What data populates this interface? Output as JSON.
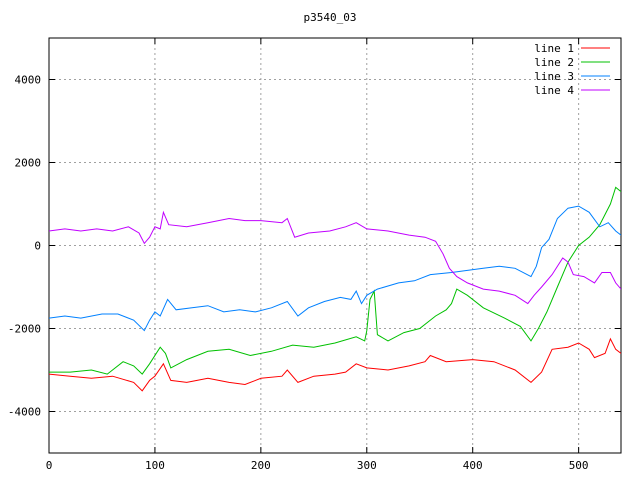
{
  "chart_data": {
    "type": "line",
    "title": "p3540_03",
    "xlabel": "",
    "ylabel": "",
    "xlim": [
      0,
      540
    ],
    "ylim": [
      -5000,
      5000
    ],
    "x_ticks": [
      0,
      100,
      200,
      300,
      400,
      500
    ],
    "y_ticks": [
      -4000,
      -2000,
      0,
      2000,
      4000
    ],
    "grid": true,
    "legend_position": "top-right",
    "series": [
      {
        "name": "line 1",
        "color": "#ff0000",
        "points": [
          [
            0,
            -3100
          ],
          [
            20,
            -3150
          ],
          [
            40,
            -3200
          ],
          [
            60,
            -3150
          ],
          [
            80,
            -3300
          ],
          [
            88,
            -3500
          ],
          [
            95,
            -3250
          ],
          [
            100,
            -3150
          ],
          [
            108,
            -2850
          ],
          [
            115,
            -3250
          ],
          [
            130,
            -3300
          ],
          [
            150,
            -3200
          ],
          [
            170,
            -3300
          ],
          [
            185,
            -3350
          ],
          [
            200,
            -3200
          ],
          [
            220,
            -3150
          ],
          [
            225,
            -3000
          ],
          [
            235,
            -3300
          ],
          [
            250,
            -3150
          ],
          [
            270,
            -3100
          ],
          [
            280,
            -3050
          ],
          [
            290,
            -2850
          ],
          [
            300,
            -2950
          ],
          [
            320,
            -3000
          ],
          [
            340,
            -2900
          ],
          [
            355,
            -2800
          ],
          [
            360,
            -2650
          ],
          [
            375,
            -2800
          ],
          [
            400,
            -2750
          ],
          [
            420,
            -2800
          ],
          [
            440,
            -3000
          ],
          [
            455,
            -3300
          ],
          [
            465,
            -3050
          ],
          [
            475,
            -2500
          ],
          [
            490,
            -2450
          ],
          [
            500,
            -2350
          ],
          [
            510,
            -2500
          ],
          [
            515,
            -2700
          ],
          [
            525,
            -2600
          ],
          [
            530,
            -2250
          ],
          [
            535,
            -2500
          ],
          [
            540,
            -2600
          ]
        ]
      },
      {
        "name": "line 2",
        "color": "#00c000",
        "points": [
          [
            0,
            -3050
          ],
          [
            20,
            -3050
          ],
          [
            40,
            -3000
          ],
          [
            55,
            -3100
          ],
          [
            70,
            -2800
          ],
          [
            80,
            -2900
          ],
          [
            88,
            -3100
          ],
          [
            95,
            -2850
          ],
          [
            105,
            -2450
          ],
          [
            110,
            -2600
          ],
          [
            115,
            -2950
          ],
          [
            130,
            -2750
          ],
          [
            150,
            -2550
          ],
          [
            170,
            -2500
          ],
          [
            190,
            -2650
          ],
          [
            210,
            -2550
          ],
          [
            230,
            -2400
          ],
          [
            250,
            -2450
          ],
          [
            270,
            -2350
          ],
          [
            290,
            -2200
          ],
          [
            298,
            -2300
          ],
          [
            300,
            -2050
          ],
          [
            303,
            -1300
          ],
          [
            307,
            -1100
          ],
          [
            310,
            -2150
          ],
          [
            320,
            -2300
          ],
          [
            335,
            -2100
          ],
          [
            350,
            -2000
          ],
          [
            365,
            -1700
          ],
          [
            375,
            -1550
          ],
          [
            380,
            -1400
          ],
          [
            385,
            -1050
          ],
          [
            395,
            -1200
          ],
          [
            410,
            -1500
          ],
          [
            430,
            -1750
          ],
          [
            445,
            -1950
          ],
          [
            455,
            -2300
          ],
          [
            462,
            -2000
          ],
          [
            470,
            -1600
          ],
          [
            480,
            -1000
          ],
          [
            490,
            -400
          ],
          [
            500,
            0
          ],
          [
            510,
            200
          ],
          [
            520,
            500
          ],
          [
            530,
            1000
          ],
          [
            535,
            1400
          ],
          [
            540,
            1300
          ]
        ]
      },
      {
        "name": "line 3",
        "color": "#0080ff",
        "points": [
          [
            0,
            -1750
          ],
          [
            15,
            -1700
          ],
          [
            30,
            -1750
          ],
          [
            50,
            -1650
          ],
          [
            65,
            -1650
          ],
          [
            80,
            -1800
          ],
          [
            90,
            -2050
          ],
          [
            95,
            -1800
          ],
          [
            100,
            -1600
          ],
          [
            105,
            -1700
          ],
          [
            112,
            -1300
          ],
          [
            120,
            -1550
          ],
          [
            135,
            -1500
          ],
          [
            150,
            -1450
          ],
          [
            165,
            -1600
          ],
          [
            180,
            -1550
          ],
          [
            195,
            -1600
          ],
          [
            210,
            -1500
          ],
          [
            225,
            -1350
          ],
          [
            235,
            -1700
          ],
          [
            245,
            -1500
          ],
          [
            260,
            -1350
          ],
          [
            275,
            -1250
          ],
          [
            285,
            -1300
          ],
          [
            290,
            -1100
          ],
          [
            295,
            -1400
          ],
          [
            300,
            -1200
          ],
          [
            310,
            -1050
          ],
          [
            330,
            -900
          ],
          [
            345,
            -850
          ],
          [
            360,
            -700
          ],
          [
            380,
            -650
          ],
          [
            395,
            -600
          ],
          [
            410,
            -550
          ],
          [
            425,
            -500
          ],
          [
            440,
            -550
          ],
          [
            455,
            -750
          ],
          [
            460,
            -500
          ],
          [
            465,
            -50
          ],
          [
            472,
            150
          ],
          [
            480,
            650
          ],
          [
            490,
            900
          ],
          [
            500,
            950
          ],
          [
            510,
            800
          ],
          [
            520,
            450
          ],
          [
            528,
            550
          ],
          [
            535,
            350
          ],
          [
            540,
            250
          ]
        ]
      },
      {
        "name": "line 4",
        "color": "#c000ff",
        "points": [
          [
            0,
            350
          ],
          [
            15,
            400
          ],
          [
            30,
            350
          ],
          [
            45,
            400
          ],
          [
            60,
            350
          ],
          [
            75,
            450
          ],
          [
            85,
            300
          ],
          [
            90,
            50
          ],
          [
            95,
            200
          ],
          [
            100,
            450
          ],
          [
            105,
            400
          ],
          [
            108,
            800
          ],
          [
            113,
            500
          ],
          [
            130,
            450
          ],
          [
            150,
            550
          ],
          [
            170,
            650
          ],
          [
            185,
            600
          ],
          [
            200,
            600
          ],
          [
            220,
            550
          ],
          [
            225,
            650
          ],
          [
            232,
            200
          ],
          [
            245,
            300
          ],
          [
            265,
            350
          ],
          [
            280,
            450
          ],
          [
            290,
            550
          ],
          [
            300,
            400
          ],
          [
            320,
            350
          ],
          [
            340,
            250
          ],
          [
            355,
            200
          ],
          [
            365,
            100
          ],
          [
            372,
            -200
          ],
          [
            378,
            -550
          ],
          [
            385,
            -750
          ],
          [
            395,
            -900
          ],
          [
            410,
            -1050
          ],
          [
            425,
            -1100
          ],
          [
            440,
            -1200
          ],
          [
            452,
            -1400
          ],
          [
            458,
            -1200
          ],
          [
            465,
            -1000
          ],
          [
            475,
            -700
          ],
          [
            485,
            -300
          ],
          [
            490,
            -400
          ],
          [
            495,
            -700
          ],
          [
            505,
            -750
          ],
          [
            515,
            -900
          ],
          [
            522,
            -650
          ],
          [
            530,
            -650
          ],
          [
            535,
            -900
          ],
          [
            540,
            -1050
          ]
        ]
      }
    ]
  }
}
